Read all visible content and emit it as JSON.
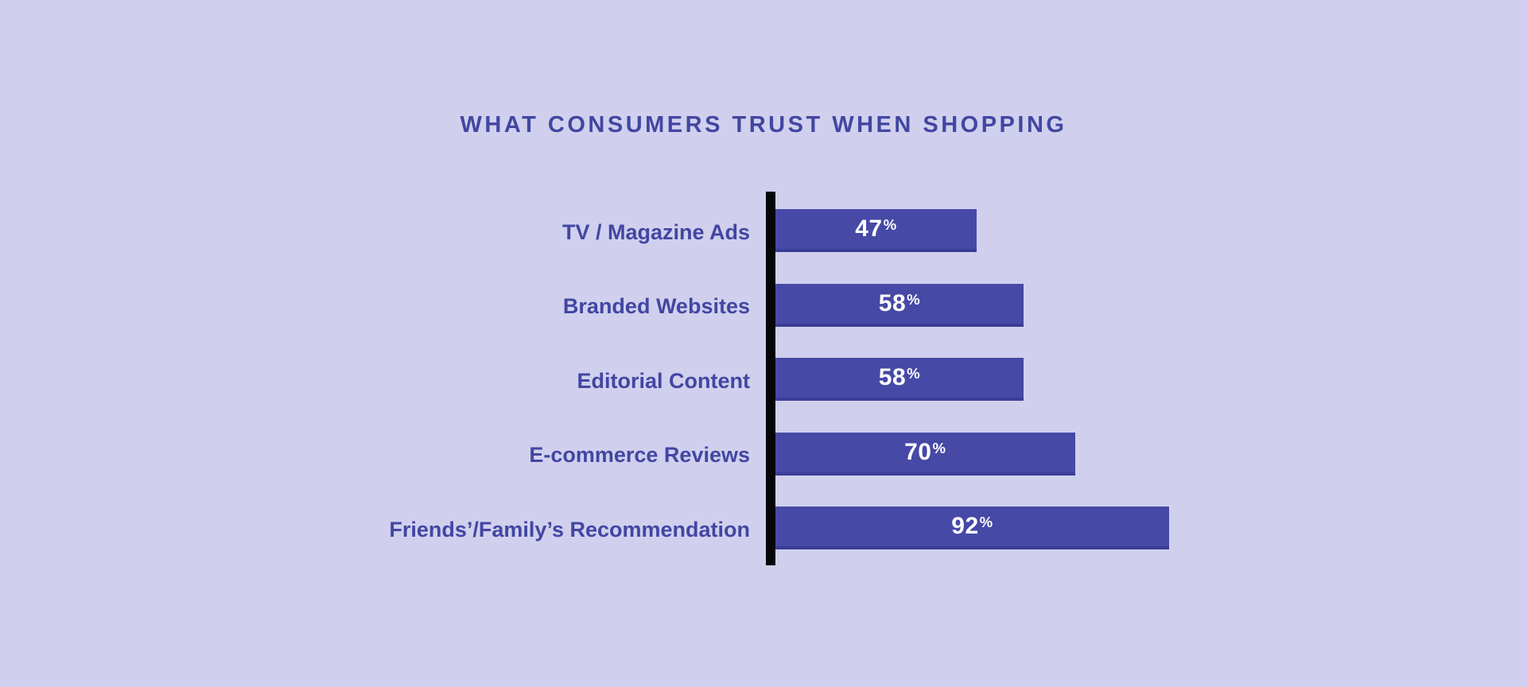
{
  "page": {
    "background_color": "#d0d0ee"
  },
  "chart_data": {
    "type": "bar",
    "orientation": "horizontal",
    "title": "WHAT CONSUMERS TRUST WHEN SHOPPING",
    "categories": [
      "TV / Magazine Ads",
      "Branded Websites",
      "Editorial Content",
      "E-commerce Reviews",
      "Friends’/Family’s Recommendation"
    ],
    "values": [
      47,
      58,
      58,
      70,
      92
    ],
    "value_suffix": "%",
    "value_labels": [
      "47%",
      "58%",
      "58%",
      "70%",
      "92%"
    ],
    "xlabel": "",
    "ylabel": "",
    "xlim": [
      0,
      100
    ],
    "grid": false,
    "legend": false,
    "bar_color": "#4649a5",
    "bar_edge_color": "#3a3d96",
    "label_color": "#4246a2",
    "axis_color": "#060606",
    "value_label_color": "#ffffff"
  }
}
